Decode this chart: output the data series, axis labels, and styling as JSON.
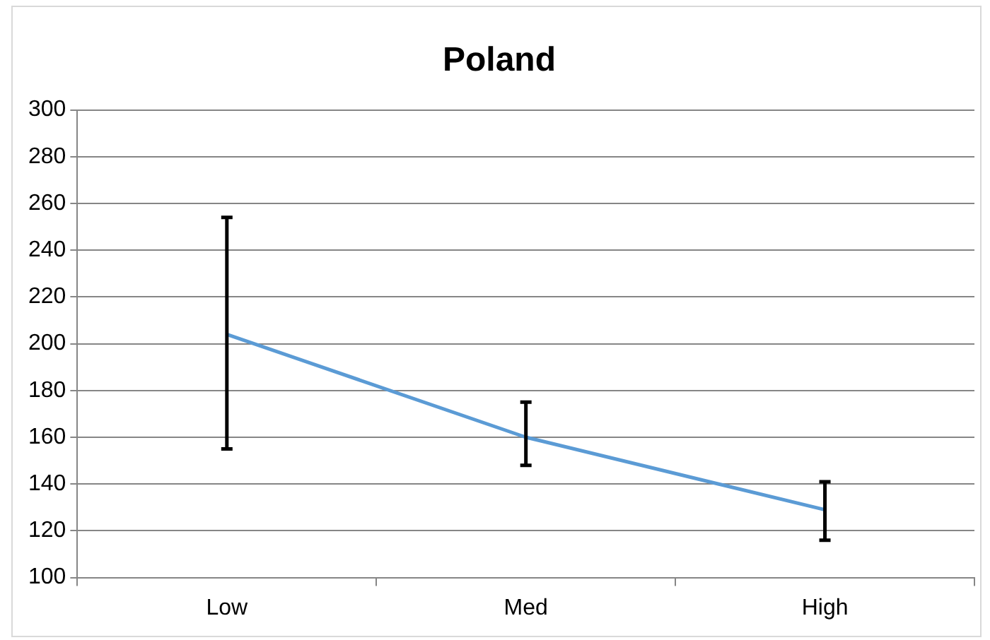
{
  "chart_data": {
    "type": "line",
    "title": "Poland",
    "categories": [
      "Low",
      "Med",
      "High"
    ],
    "series": [
      {
        "color": "#5b9bd5",
        "values": [
          204,
          160,
          129
        ],
        "errors": [
          [
            155,
            254
          ],
          [
            148,
            175
          ],
          [
            116,
            141
          ]
        ]
      }
    ],
    "ylim": [
      100,
      300
    ],
    "yticks": [
      100,
      120,
      140,
      160,
      180,
      200,
      220,
      240,
      260,
      280,
      300
    ],
    "grid": "y",
    "marker": "none",
    "line_style": "solid",
    "legend": false
  }
}
